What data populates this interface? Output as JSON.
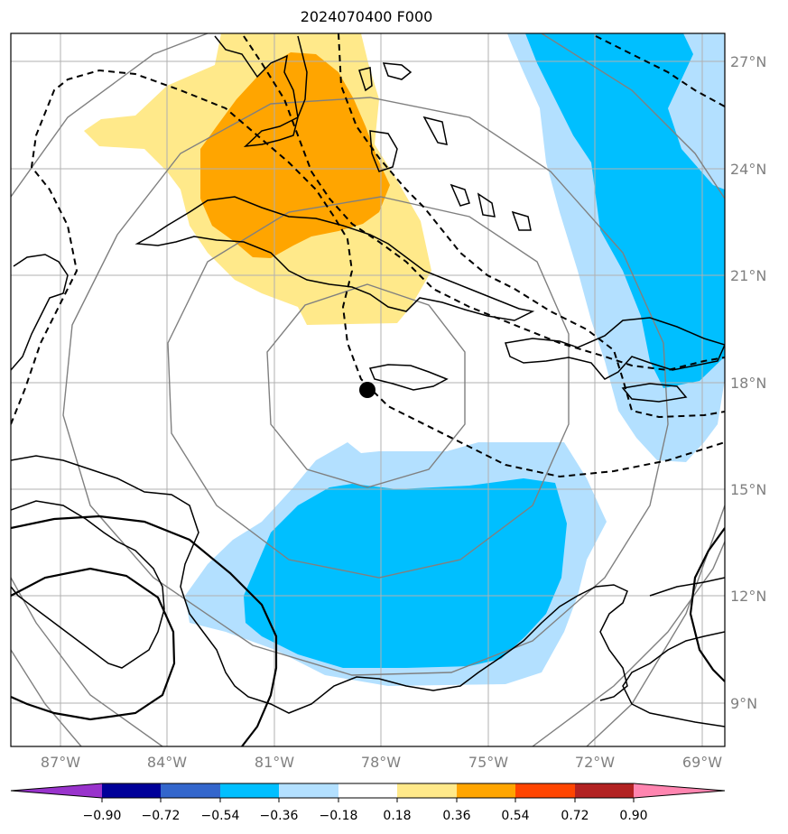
{
  "title": "2024070400 F000",
  "map": {
    "lon_labels": [
      "87°W",
      "84°W",
      "81°W",
      "78°W",
      "75°W",
      "72°W",
      "69°W"
    ],
    "lat_labels": [
      "27°N",
      "24°N",
      "21°N",
      "18°N",
      "15°N",
      "12°N",
      "9°N"
    ],
    "center_marker": "storm-center-dot"
  },
  "colorbar": {
    "ticks": [
      "−0.90",
      "−0.72",
      "−0.54",
      "−0.36",
      "−0.18",
      "0.18",
      "0.36",
      "0.54",
      "0.72",
      "0.90"
    ],
    "colors": [
      "#9933cc",
      "#000099",
      "#3366cc",
      "#00bfff",
      "#b3e0ff",
      "#ffffff",
      "#ffe98a",
      "#ffa500",
      "#ff4500",
      "#b22222",
      "#ff85b0"
    ]
  },
  "colors": {
    "light_yellow": "#ffe98a",
    "orange": "#ffa500",
    "light_blue": "#b3e0ff",
    "deep_sky_blue": "#00bfff",
    "grid": "#b0b0b0",
    "range_rings": "#808080"
  }
}
